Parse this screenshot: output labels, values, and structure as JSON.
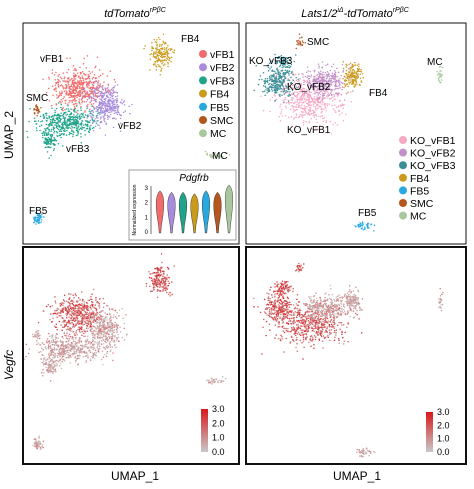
{
  "figure": {
    "ylabel_top": "UMAP_2",
    "ylabel_bottom": "Vegfc",
    "xlabel_left": "UMAP_1",
    "xlabel_right": "UMAP_1"
  },
  "chart_data": [
    {
      "type": "scatter",
      "panel": "top-left",
      "title_main": "tdTomato",
      "title_sup": "rPβC",
      "cluster_labels": [
        "vFB1",
        "SMC",
        "vFB2",
        "vFB3",
        "FB4",
        "FB5",
        "MC"
      ],
      "legend": [
        {
          "name": "vFB1",
          "color": "#f26b6b"
        },
        {
          "name": "vFB2",
          "color": "#a78bdc"
        },
        {
          "name": "vFB3",
          "color": "#1fa38a"
        },
        {
          "name": "FB4",
          "color": "#c99a1c"
        },
        {
          "name": "FB5",
          "color": "#29a8e0"
        },
        {
          "name": "SMC",
          "color": "#b5561e"
        },
        {
          "name": "MC",
          "color": "#a9c79c"
        }
      ],
      "inset": {
        "type": "violin",
        "title": "Pdgfrb",
        "ylabel": "Normalized expression",
        "yticks": [
          "3",
          "2",
          "1",
          "0"
        ],
        "categories": [
          "vFB1",
          "vFB2",
          "vFB3",
          "FB4",
          "FB5",
          "SMC",
          "MC"
        ],
        "values": [
          2.2,
          2.1,
          2.1,
          2.0,
          2.2,
          2.1,
          2.6
        ]
      }
    },
    {
      "type": "scatter",
      "panel": "top-right",
      "title_main": "Lats1/2",
      "title_sup1": "iΔ",
      "title_mid": "-tdTomato",
      "title_sup2": "rPβC",
      "cluster_labels": [
        "SMC",
        "KO_vFB3",
        "KO_vFB2",
        "MC",
        "FB4",
        "KO_vFB1",
        "FB5"
      ],
      "legend": [
        {
          "name": "KO_vFB1",
          "color": "#f7a8c4"
        },
        {
          "name": "KO_vFB2",
          "color": "#c190c8"
        },
        {
          "name": "KO_vFB3",
          "color": "#3a8d97"
        },
        {
          "name": "FB4",
          "color": "#c99a1c"
        },
        {
          "name": "FB5",
          "color": "#29a8e0"
        },
        {
          "name": "SMC",
          "color": "#b5561e"
        },
        {
          "name": "MC",
          "color": "#a9c79c"
        }
      ]
    },
    {
      "type": "scatter",
      "panel": "bottom-left",
      "colorbar": {
        "ticks": [
          "3.0",
          "2.0",
          "1.0",
          "0.0"
        ],
        "low": "#c8c8c8",
        "high": "#d7191c"
      }
    },
    {
      "type": "scatter",
      "panel": "bottom-right",
      "colorbar": {
        "ticks": [
          "3.0",
          "2.0",
          "1.0",
          "0.0"
        ],
        "low": "#c8c8c8",
        "high": "#d7191c"
      }
    }
  ]
}
